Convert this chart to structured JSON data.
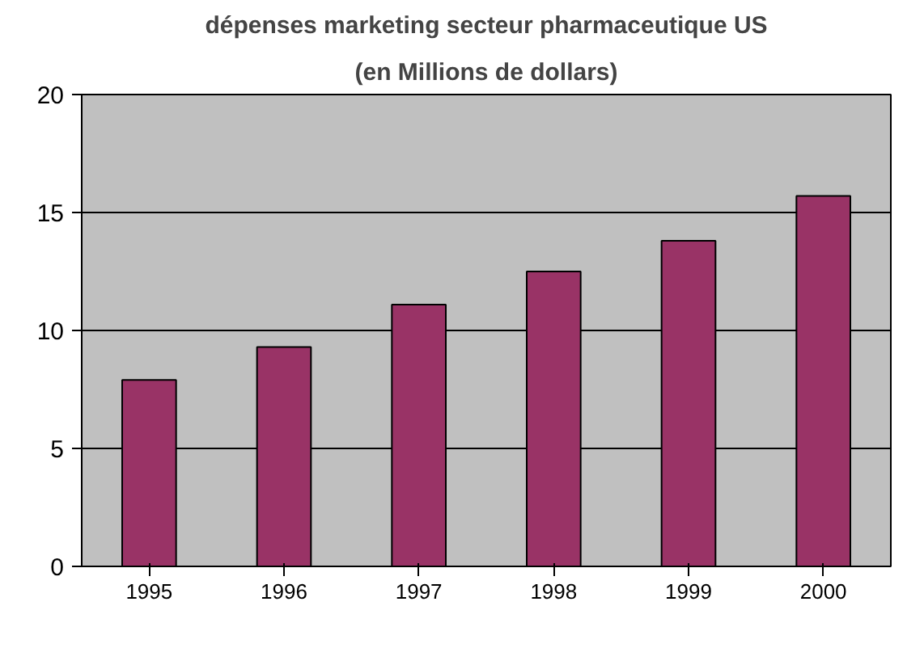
{
  "chart_data": {
    "type": "bar",
    "title": "dépenses marketing secteur pharmaceutique US",
    "subtitle": "(en Millions de dollars)",
    "categories": [
      "1995",
      "1996",
      "1997",
      "1998",
      "1999",
      "2000"
    ],
    "values": [
      7.9,
      9.3,
      11.1,
      12.5,
      13.8,
      15.7
    ],
    "color": "#993366",
    "ylim": [
      0,
      20
    ],
    "yticks": [
      0,
      5,
      10,
      15,
      20
    ],
    "grid": "y"
  }
}
